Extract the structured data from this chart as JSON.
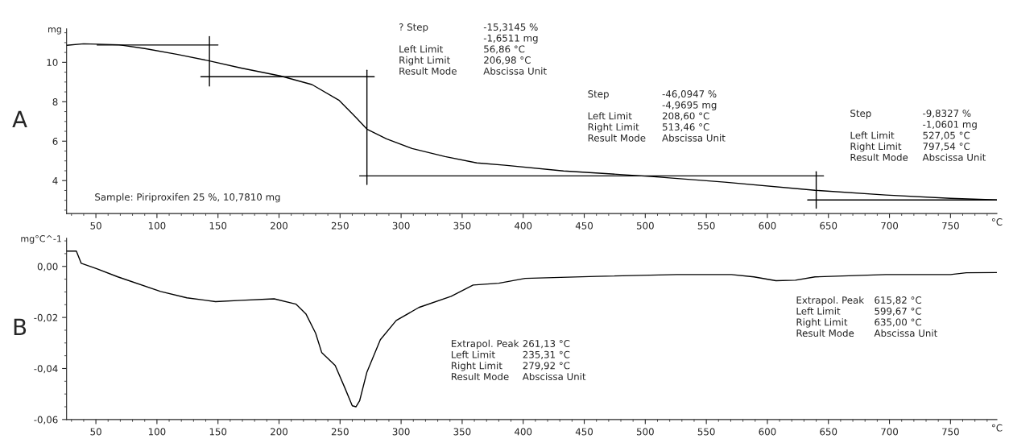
{
  "chart_data": [
    {
      "type": "line",
      "title": "A",
      "xlabel": "°C",
      "ylabel": "mg",
      "xlim": [
        26,
        788
      ],
      "ylim": [
        2.33,
        11.7
      ],
      "xticks": [
        50,
        100,
        150,
        200,
        250,
        300,
        350,
        400,
        450,
        500,
        550,
        600,
        650,
        700,
        750
      ],
      "yticks": [
        4,
        6,
        8,
        10
      ],
      "grid": false,
      "marker": "none",
      "series": [
        {
          "color": "#000000",
          "x": [
            26,
            40,
            69,
            90,
            117,
            143,
            169,
            201,
            227,
            249,
            262,
            272,
            288,
            309,
            336,
            362,
            385,
            433,
            507,
            565,
            639,
            697,
            750,
            788
          ],
          "values": [
            10.86,
            10.94,
            10.89,
            10.7,
            10.4,
            10.07,
            9.71,
            9.31,
            8.87,
            8.08,
            7.27,
            6.61,
            6.12,
            5.63,
            5.22,
            4.9,
            4.78,
            4.49,
            4.2,
            3.92,
            3.51,
            3.27,
            3.1,
            3.02
          ]
        },
        {
          "color": "#000000",
          "x": [
            51,
            150
          ],
          "values": [
            10.88,
            10.88
          ]
        },
        {
          "color": "#000000",
          "x": [
            143,
            143
          ],
          "values": [
            8.8,
            11.3
          ]
        },
        {
          "color": "#000000",
          "x": [
            136,
            278
          ],
          "values": [
            9.27,
            9.27
          ]
        },
        {
          "color": "#000000",
          "x": [
            272,
            272
          ],
          "values": [
            9.6,
            3.8
          ]
        },
        {
          "color": "#000000",
          "x": [
            266,
            646
          ],
          "values": [
            4.24,
            4.24
          ]
        },
        {
          "color": "#000000",
          "x": [
            640,
            640
          ],
          "values": [
            4.45,
            2.6
          ]
        },
        {
          "color": "#000000",
          "x": [
            633,
            788
          ],
          "values": [
            3.02,
            3.02
          ]
        }
      ],
      "annotations": [
        "? Step\n\nLeft Limit\nRight Limit\nResult Mode",
        "-15,3145 %\n-1,6511 mg\n56,86 °C\n206,98 °C\nAbscissa Unit",
        "Step\n\nLeft Limit\nRight Limit\nResult Mode",
        "-46,0947 %\n-4,9695 mg\n208,60 °C\n513,46 °C\nAbscissa Unit",
        "Step\n\nLeft Limit\nRight Limit\nResult Mode",
        "-9,8327 %\n-1,0601 mg\n527,05 °C\n797,54 °C\nAbscissa Unit",
        "Sample: Piriproxifen 25 %, 10,7810 mg"
      ]
    },
    {
      "type": "line",
      "title": "B",
      "xlabel": "°C",
      "ylabel": "mg°C^-1",
      "xlim": [
        26,
        788
      ],
      "ylim": [
        -0.06,
        0.011
      ],
      "xticks": [
        50,
        100,
        150,
        200,
        250,
        300,
        350,
        400,
        450,
        500,
        550,
        600,
        650,
        700,
        750
      ],
      "yticks": [
        {
          "value": 0,
          "label": "0,00"
        },
        {
          "value": -0.02,
          "label": "-0,02"
        },
        {
          "value": -0.04,
          "label": "-0,04"
        },
        {
          "value": -0.06,
          "label": "-0,06"
        }
      ],
      "grid": false,
      "marker": "none",
      "series": [
        {
          "color": "#000000",
          "x": [
            26,
            34,
            38,
            50.7,
            68,
            103,
            124.5,
            148,
            169,
            196,
            214,
            222,
            230,
            235,
            246,
            254,
            260,
            263,
            266,
            272,
            283,
            296,
            314.5,
            341,
            359,
            380,
            401.6,
            460,
            526,
            570.5,
            589,
            607,
            623,
            639,
            697,
            750,
            763,
            788
          ],
          "values": [
            0.006,
            0.006,
            0.0012,
            -0.0009,
            -0.0041,
            -0.0098,
            -0.0123,
            -0.0138,
            -0.0133,
            -0.0127,
            -0.0148,
            -0.0186,
            -0.0262,
            -0.0338,
            -0.0388,
            -0.0477,
            -0.0546,
            -0.055,
            -0.0527,
            -0.0414,
            -0.0287,
            -0.0212,
            -0.0161,
            -0.0117,
            -0.0073,
            -0.0066,
            -0.0047,
            -0.0039,
            -0.0032,
            -0.0032,
            -0.0041,
            -0.0056,
            -0.0054,
            -0.0041,
            -0.0032,
            -0.0032,
            -0.0025,
            -0.0024
          ]
        }
      ],
      "annotations": [
        "Extrapol. Peak\nLeft Limit\nRight Limit\nResult Mode",
        "261,13 °C\n235,31 °C\n279,92 °C\nAbscissa Unit",
        "Extrapol. Peak\nLeft Limit\nRight Limit\nResult Mode",
        "615,82 °C\n599,67 °C\n635,00 °C\nAbscissa Unit"
      ]
    }
  ]
}
